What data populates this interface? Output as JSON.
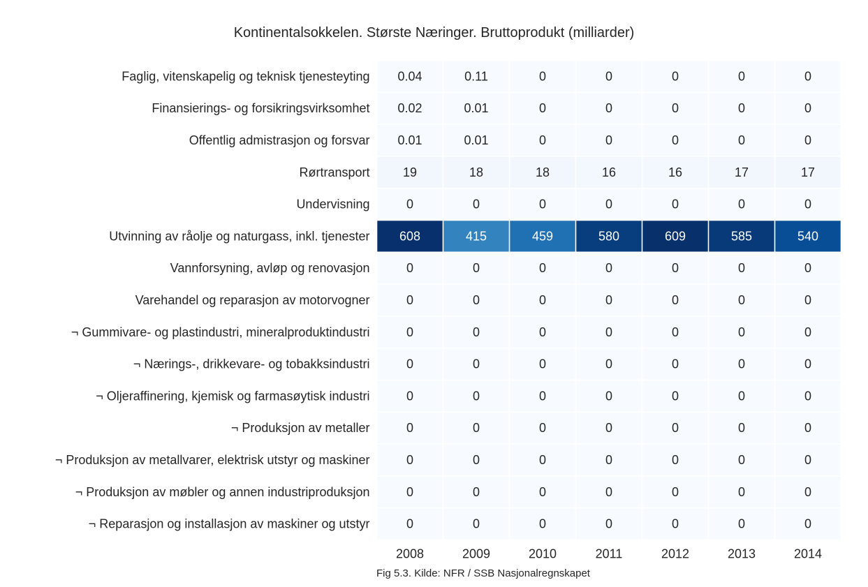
{
  "chart_data": {
    "type": "heatmap",
    "title": "Kontinentalsokkelen. Største Næringer. Bruttoprodukt (milliarder)",
    "caption": "Fig 5.3. Kilde: NFR / SSB Nasjonalregnskapet",
    "x_categories": [
      "2008",
      "2009",
      "2010",
      "2011",
      "2012",
      "2013",
      "2014"
    ],
    "y_categories": [
      "Faglig, vitenskapelig og teknisk tjenesteyting",
      "Finansierings- og forsikringsvirksomhet",
      "Offentlig admistrasjon og forsvar",
      "Rørtransport",
      "Undervisning",
      "Utvinning av råolje og naturgass, inkl. tjenester",
      "Vannforsyning, avløp og renovasjon",
      "Varehandel og reparasjon av motorvogner",
      "¬ Gummivare- og plastindustri, mineralproduktindustri",
      "¬ Nærings-, drikkevare- og tobakksindustri",
      "¬ Oljeraffinering, kjemisk og farmasøytisk industri",
      "¬ Produksjon av metaller",
      "¬ Produksjon av metallvarer, elektrisk utstyr og maskiner",
      "¬ Produksjon av møbler og annen industriproduksjon",
      "¬ Reparasjon og installasjon av maskiner og utstyr"
    ],
    "values": [
      [
        0.04,
        0.11,
        0,
        0,
        0,
        0,
        0
      ],
      [
        0.02,
        0.01,
        0,
        0,
        0,
        0,
        0
      ],
      [
        0.01,
        0.01,
        0,
        0,
        0,
        0,
        0
      ],
      [
        19,
        18,
        18,
        16,
        16,
        17,
        17
      ],
      [
        0,
        0,
        0,
        0,
        0,
        0,
        0
      ],
      [
        608,
        415,
        459,
        580,
        609,
        585,
        540
      ],
      [
        0,
        0,
        0,
        0,
        0,
        0,
        0
      ],
      [
        0,
        0,
        0,
        0,
        0,
        0,
        0
      ],
      [
        0,
        0,
        0,
        0,
        0,
        0,
        0
      ],
      [
        0,
        0,
        0,
        0,
        0,
        0,
        0
      ],
      [
        0,
        0,
        0,
        0,
        0,
        0,
        0
      ],
      [
        0,
        0,
        0,
        0,
        0,
        0,
        0
      ],
      [
        0,
        0,
        0,
        0,
        0,
        0,
        0
      ],
      [
        0,
        0,
        0,
        0,
        0,
        0,
        0
      ],
      [
        0,
        0,
        0,
        0,
        0,
        0,
        0
      ]
    ],
    "value_labels": [
      [
        "0.04",
        "0.11",
        "0",
        "0",
        "0",
        "0",
        "0"
      ],
      [
        "0.02",
        "0.01",
        "0",
        "0",
        "0",
        "0",
        "0"
      ],
      [
        "0.01",
        "0.01",
        "0",
        "0",
        "0",
        "0",
        "0"
      ],
      [
        "19",
        "18",
        "18",
        "16",
        "16",
        "17",
        "17"
      ],
      [
        "0",
        "0",
        "0",
        "0",
        "0",
        "0",
        "0"
      ],
      [
        "608",
        "415",
        "459",
        "580",
        "609",
        "585",
        "540"
      ],
      [
        "0",
        "0",
        "0",
        "0",
        "0",
        "0",
        "0"
      ],
      [
        "0",
        "0",
        "0",
        "0",
        "0",
        "0",
        "0"
      ],
      [
        "0",
        "0",
        "0",
        "0",
        "0",
        "0",
        "0"
      ],
      [
        "0",
        "0",
        "0",
        "0",
        "0",
        "0",
        "0"
      ],
      [
        "0",
        "0",
        "0",
        "0",
        "0",
        "0",
        "0"
      ],
      [
        "0",
        "0",
        "0",
        "0",
        "0",
        "0",
        "0"
      ],
      [
        "0",
        "0",
        "0",
        "0",
        "0",
        "0",
        "0"
      ],
      [
        "0",
        "0",
        "0",
        "0",
        "0",
        "0",
        "0"
      ],
      [
        "0",
        "0",
        "0",
        "0",
        "0",
        "0",
        "0"
      ]
    ],
    "colormap": "Blues",
    "color_range": [
      0,
      609
    ],
    "colors": {
      "low": "#f7fbff",
      "high": "#08306b",
      "text_dark": "#262626",
      "text_light": "#ffffff",
      "gap": "#ffffff"
    },
    "legend": "none",
    "grid": false
  }
}
